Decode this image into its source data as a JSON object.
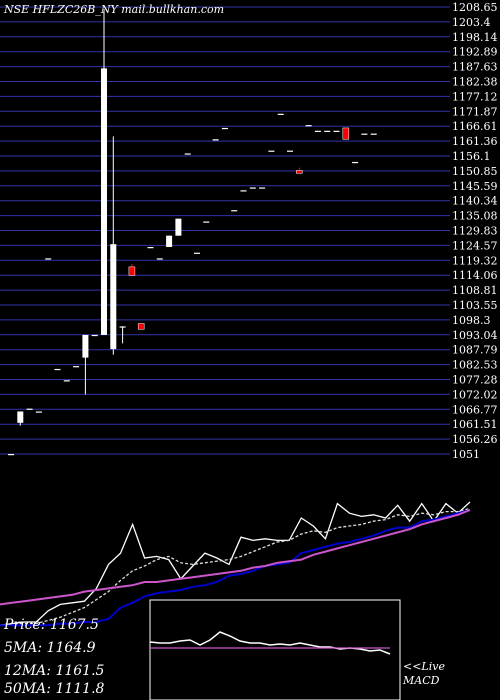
{
  "chart_data": [
    {
      "type": "candlestick",
      "title": "NSE HFLZC26B_NY mail.bullkhan.com",
      "y_ticks": [
        "1208.65",
        "1203.4",
        "1198.14",
        "1192.89",
        "1187.63",
        "1182.38",
        "1177.12",
        "1171.87",
        "1166.61",
        "1161.36",
        "1156.1",
        "1150.85",
        "1145.59",
        "1140.34",
        "1135.08",
        "1129.83",
        "1124.57",
        "1119.32",
        "1114.06",
        "1108.81",
        "1103.55",
        "1098.3",
        "1093.04",
        "1087.79",
        "1082.53",
        "1077.28",
        "1072.02",
        "1066.77",
        "1061.51",
        "1056.26",
        "1051"
      ],
      "ylim": [
        1051,
        1208.65
      ],
      "grid": true,
      "colors": {
        "up": "#ffffff",
        "down": "#ff0000",
        "grid": "#3333aa",
        "axis_text": "#ffffff"
      },
      "candles": [
        {
          "o": 1051,
          "h": 1051,
          "l": 1051,
          "c": 1051
        },
        {
          "o": 1062,
          "h": 1066,
          "l": 1061,
          "c": 1066
        },
        {
          "o": 1067,
          "h": 1067,
          "l": 1067,
          "c": 1067
        },
        {
          "o": 1066,
          "h": 1066,
          "l": 1066,
          "c": 1066
        },
        {
          "o": 1120,
          "h": 1120,
          "l": 1120,
          "c": 1120
        },
        {
          "o": 1081,
          "h": 1081,
          "l": 1081,
          "c": 1081
        },
        {
          "o": 1077,
          "h": 1077,
          "l": 1077,
          "c": 1077
        },
        {
          "o": 1082,
          "h": 1082,
          "l": 1082,
          "c": 1082
        },
        {
          "o": 1085,
          "h": 1093,
          "l": 1072,
          "c": 1093
        },
        {
          "o": 1093,
          "h": 1093,
          "l": 1093,
          "c": 1093
        },
        {
          "o": 1093,
          "h": 1208,
          "l": 1093,
          "c": 1187
        },
        {
          "o": 1088,
          "h": 1163,
          "l": 1086,
          "c": 1125
        },
        {
          "o": 1096,
          "h": 1096,
          "l": 1090,
          "c": 1096
        },
        {
          "o": 1117,
          "h": 1118,
          "l": 1114,
          "c": 1114
        },
        {
          "o": 1097,
          "h": 1097,
          "l": 1095,
          "c": 1095
        },
        {
          "o": 1124,
          "h": 1124,
          "l": 1124,
          "c": 1124
        },
        {
          "o": 1120,
          "h": 1120,
          "l": 1120,
          "c": 1120
        },
        {
          "o": 1124,
          "h": 1128,
          "l": 1124,
          "c": 1128
        },
        {
          "o": 1128,
          "h": 1134,
          "l": 1128,
          "c": 1134
        },
        {
          "o": 1157,
          "h": 1157,
          "l": 1157,
          "c": 1157
        },
        {
          "o": 1122,
          "h": 1122,
          "l": 1122,
          "c": 1122
        },
        {
          "o": 1133,
          "h": 1133,
          "l": 1133,
          "c": 1133
        },
        {
          "o": 1162,
          "h": 1162,
          "l": 1162,
          "c": 1162
        },
        {
          "o": 1166,
          "h": 1166,
          "l": 1166,
          "c": 1166
        },
        {
          "o": 1137,
          "h": 1137,
          "l": 1137,
          "c": 1137
        },
        {
          "o": 1144,
          "h": 1144,
          "l": 1144,
          "c": 1144
        },
        {
          "o": 1145,
          "h": 1145,
          "l": 1145,
          "c": 1145
        },
        {
          "o": 1145,
          "h": 1145,
          "l": 1145,
          "c": 1145
        },
        {
          "o": 1158,
          "h": 1158,
          "l": 1158,
          "c": 1158
        },
        {
          "o": 1171,
          "h": 1171,
          "l": 1171,
          "c": 1171
        },
        {
          "o": 1158,
          "h": 1158,
          "l": 1158,
          "c": 1158
        },
        {
          "o": 1151,
          "h": 1152,
          "l": 1150,
          "c": 1150
        },
        {
          "o": 1167,
          "h": 1167,
          "l": 1167,
          "c": 1167
        },
        {
          "o": 1165,
          "h": 1165,
          "l": 1165,
          "c": 1165
        },
        {
          "o": 1165,
          "h": 1165,
          "l": 1165,
          "c": 1165
        },
        {
          "o": 1165,
          "h": 1165,
          "l": 1165,
          "c": 1165
        },
        {
          "o": 1166,
          "h": 1166,
          "l": 1162,
          "c": 1162
        },
        {
          "o": 1154,
          "h": 1154,
          "l": 1154,
          "c": 1154
        },
        {
          "o": 1164,
          "h": 1164,
          "l": 1164,
          "c": 1164
        },
        {
          "o": 1164,
          "h": 1164,
          "l": 1164,
          "c": 1164
        }
      ]
    },
    {
      "type": "line",
      "series": [
        {
          "color": "#ffffff",
          "values": [
            3,
            4,
            5,
            5,
            12,
            16,
            17,
            18,
            26,
            41,
            48,
            66,
            45,
            46,
            44,
            32,
            40,
            48,
            45,
            41,
            58,
            56,
            57,
            56,
            56,
            70,
            65,
            57,
            79,
            73,
            71,
            72,
            70,
            78,
            68,
            79,
            68,
            79,
            73,
            80
          ]
        },
        {
          "color": "#dddddd",
          "values": [
            3,
            4,
            4,
            4,
            6,
            8,
            11,
            14,
            19,
            24,
            31,
            37,
            40,
            44,
            46,
            42,
            41,
            42,
            43,
            44,
            46,
            49,
            52,
            55,
            56,
            60,
            62,
            61,
            64,
            65,
            66,
            68,
            69,
            72,
            71,
            73,
            72,
            74,
            74,
            76
          ]
        },
        {
          "color": "#0000cc",
          "values": [
            3,
            3,
            3,
            3,
            3,
            4,
            4,
            5,
            5,
            7,
            14,
            17,
            21,
            23,
            24,
            25,
            27,
            28,
            30,
            34,
            35,
            37,
            40,
            41,
            42,
            48,
            50,
            52,
            54,
            55,
            57,
            59,
            62,
            64,
            64,
            68,
            69,
            71,
            73,
            75
          ]
        },
        {
          "color": "#cc55cc",
          "values": [
            16,
            17,
            18,
            19,
            20,
            21,
            22,
            24,
            25,
            26,
            27,
            28,
            30,
            30,
            31,
            32,
            33,
            34,
            35,
            36,
            37,
            39,
            40,
            42,
            43,
            44,
            47,
            49,
            51,
            53,
            55,
            57,
            59,
            61,
            63,
            66,
            68,
            70,
            72,
            75
          ]
        }
      ]
    },
    {
      "type": "line",
      "series": [
        {
          "color": "#ffffff",
          "values": [
            58,
            57,
            57,
            59,
            60,
            55,
            60,
            68,
            64,
            59,
            57,
            57,
            55,
            56,
            55,
            57,
            55,
            53,
            53,
            51,
            52,
            51,
            49,
            50,
            46
          ]
        },
        {
          "color": "#cc55cc",
          "values": [
            52,
            52,
            52,
            52,
            52,
            52,
            52,
            52,
            52,
            52,
            52,
            52,
            52,
            52,
            52,
            52,
            52,
            52,
            52,
            52,
            52,
            52,
            52,
            52,
            52
          ]
        }
      ]
    }
  ],
  "stats": [
    {
      "label": "Price",
      "value": "1167.5"
    },
    {
      "label": "5MA",
      "value": "1164.9"
    },
    {
      "label": "12MA",
      "value": "1161.5"
    },
    {
      "label": "50MA",
      "value": "1111.8"
    }
  ],
  "macd_label": "<<Live\nMACD",
  "macd_lines": [
    "<<Live",
    "MACD"
  ]
}
